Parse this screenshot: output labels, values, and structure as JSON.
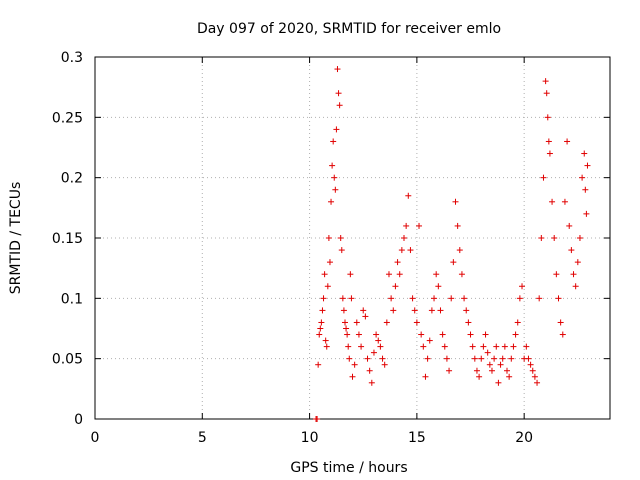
{
  "chart_data": {
    "type": "scatter",
    "title": "Day 097 of 2020, SRMTID for receiver emlo",
    "xlabel": "GPS time / hours",
    "ylabel": "SRMTID / TECUs",
    "xlim": [
      0,
      24
    ],
    "ylim": [
      0,
      0.3
    ],
    "xticks": [
      0,
      5,
      10,
      15,
      20
    ],
    "xtick_labels": [
      "0",
      "5",
      "10",
      "15",
      "20"
    ],
    "yticks": [
      0,
      0.05,
      0.1,
      0.15,
      0.2,
      0.25,
      0.3
    ],
    "ytick_labels": [
      "0",
      "0.05",
      "0.1",
      "0.15",
      "0.2",
      "0.25",
      "0.3"
    ],
    "grid": true,
    "marker": "+",
    "color": "#e00000",
    "series": [
      {
        "name": "SRMTID",
        "points": [
          [
            10.3,
            0.0
          ],
          [
            10.35,
            0.0
          ],
          [
            10.4,
            0.045
          ],
          [
            10.45,
            0.07
          ],
          [
            10.5,
            0.075
          ],
          [
            10.55,
            0.08
          ],
          [
            10.6,
            0.09
          ],
          [
            10.65,
            0.1
          ],
          [
            10.7,
            0.12
          ],
          [
            10.75,
            0.065
          ],
          [
            10.8,
            0.06
          ],
          [
            10.85,
            0.11
          ],
          [
            10.9,
            0.15
          ],
          [
            10.95,
            0.13
          ],
          [
            11.0,
            0.18
          ],
          [
            11.05,
            0.21
          ],
          [
            11.1,
            0.23
          ],
          [
            11.15,
            0.2
          ],
          [
            11.2,
            0.19
          ],
          [
            11.25,
            0.24
          ],
          [
            11.3,
            0.29
          ],
          [
            11.35,
            0.27
          ],
          [
            11.4,
            0.26
          ],
          [
            11.45,
            0.15
          ],
          [
            11.5,
            0.14
          ],
          [
            11.55,
            0.1
          ],
          [
            11.6,
            0.09
          ],
          [
            11.65,
            0.08
          ],
          [
            11.7,
            0.075
          ],
          [
            11.75,
            0.07
          ],
          [
            11.8,
            0.06
          ],
          [
            11.85,
            0.05
          ],
          [
            11.9,
            0.12
          ],
          [
            11.95,
            0.1
          ],
          [
            12.0,
            0.035
          ],
          [
            12.1,
            0.045
          ],
          [
            12.2,
            0.08
          ],
          [
            12.3,
            0.07
          ],
          [
            12.4,
            0.06
          ],
          [
            12.5,
            0.09
          ],
          [
            12.6,
            0.085
          ],
          [
            12.7,
            0.05
          ],
          [
            12.8,
            0.04
          ],
          [
            12.9,
            0.03
          ],
          [
            13.0,
            0.055
          ],
          [
            13.1,
            0.07
          ],
          [
            13.2,
            0.065
          ],
          [
            13.3,
            0.06
          ],
          [
            13.4,
            0.05
          ],
          [
            13.5,
            0.045
          ],
          [
            13.6,
            0.08
          ],
          [
            13.7,
            0.12
          ],
          [
            13.8,
            0.1
          ],
          [
            13.9,
            0.09
          ],
          [
            14.0,
            0.11
          ],
          [
            14.1,
            0.13
          ],
          [
            14.2,
            0.12
          ],
          [
            14.3,
            0.14
          ],
          [
            14.4,
            0.15
          ],
          [
            14.5,
            0.16
          ],
          [
            14.6,
            0.185
          ],
          [
            14.7,
            0.14
          ],
          [
            14.8,
            0.1
          ],
          [
            14.9,
            0.09
          ],
          [
            15.0,
            0.08
          ],
          [
            15.1,
            0.16
          ],
          [
            15.2,
            0.07
          ],
          [
            15.3,
            0.06
          ],
          [
            15.4,
            0.035
          ],
          [
            15.5,
            0.05
          ],
          [
            15.6,
            0.065
          ],
          [
            15.7,
            0.09
          ],
          [
            15.8,
            0.1
          ],
          [
            15.9,
            0.12
          ],
          [
            16.0,
            0.11
          ],
          [
            16.1,
            0.09
          ],
          [
            16.2,
            0.07
          ],
          [
            16.3,
            0.06
          ],
          [
            16.4,
            0.05
          ],
          [
            16.5,
            0.04
          ],
          [
            16.6,
            0.1
          ],
          [
            16.7,
            0.13
          ],
          [
            16.8,
            0.18
          ],
          [
            16.9,
            0.16
          ],
          [
            17.0,
            0.14
          ],
          [
            17.1,
            0.12
          ],
          [
            17.2,
            0.1
          ],
          [
            17.3,
            0.09
          ],
          [
            17.4,
            0.08
          ],
          [
            17.5,
            0.07
          ],
          [
            17.6,
            0.06
          ],
          [
            17.7,
            0.05
          ],
          [
            17.8,
            0.04
          ],
          [
            17.9,
            0.035
          ],
          [
            18.0,
            0.05
          ],
          [
            18.1,
            0.06
          ],
          [
            18.2,
            0.07
          ],
          [
            18.3,
            0.055
          ],
          [
            18.4,
            0.045
          ],
          [
            18.5,
            0.04
          ],
          [
            18.6,
            0.05
          ],
          [
            18.7,
            0.06
          ],
          [
            18.8,
            0.03
          ],
          [
            18.9,
            0.045
          ],
          [
            19.0,
            0.05
          ],
          [
            19.1,
            0.06
          ],
          [
            19.2,
            0.04
          ],
          [
            19.3,
            0.035
          ],
          [
            19.4,
            0.05
          ],
          [
            19.5,
            0.06
          ],
          [
            19.6,
            0.07
          ],
          [
            19.7,
            0.08
          ],
          [
            19.8,
            0.1
          ],
          [
            19.9,
            0.11
          ],
          [
            20.0,
            0.05
          ],
          [
            20.1,
            0.06
          ],
          [
            20.2,
            0.05
          ],
          [
            20.3,
            0.045
          ],
          [
            20.4,
            0.04
          ],
          [
            20.5,
            0.035
          ],
          [
            20.6,
            0.03
          ],
          [
            20.7,
            0.1
          ],
          [
            20.8,
            0.15
          ],
          [
            20.9,
            0.2
          ],
          [
            21.0,
            0.28
          ],
          [
            21.05,
            0.27
          ],
          [
            21.1,
            0.25
          ],
          [
            21.15,
            0.23
          ],
          [
            21.2,
            0.22
          ],
          [
            21.3,
            0.18
          ],
          [
            21.4,
            0.15
          ],
          [
            21.5,
            0.12
          ],
          [
            21.6,
            0.1
          ],
          [
            21.7,
            0.08
          ],
          [
            21.8,
            0.07
          ],
          [
            21.9,
            0.18
          ],
          [
            22.0,
            0.23
          ],
          [
            22.1,
            0.16
          ],
          [
            22.2,
            0.14
          ],
          [
            22.3,
            0.12
          ],
          [
            22.4,
            0.11
          ],
          [
            22.5,
            0.13
          ],
          [
            22.6,
            0.15
          ],
          [
            22.7,
            0.2
          ],
          [
            22.8,
            0.22
          ],
          [
            22.85,
            0.19
          ],
          [
            22.9,
            0.17
          ],
          [
            22.95,
            0.21
          ]
        ]
      }
    ]
  }
}
